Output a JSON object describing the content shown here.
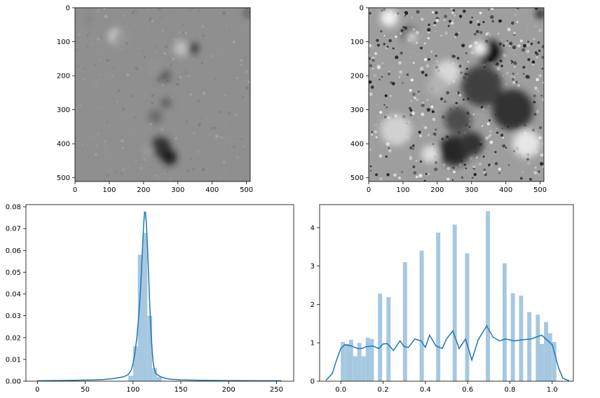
{
  "chart_data": [
    {
      "type": "heatmap",
      "subtype": "image",
      "colormap": "gray",
      "xlim": [
        0,
        511
      ],
      "ylim": [
        511,
        0
      ],
      "xticks": [
        "0",
        "100",
        "200",
        "300",
        "400",
        "500"
      ],
      "yticks": [
        "0",
        "100",
        "200",
        "300",
        "400",
        "500"
      ],
      "blobs": [
        {
          "x": 120,
          "y": 85,
          "r": 22,
          "v": 0.85
        },
        {
          "x": 130,
          "y": 90,
          "r": 20,
          "v": 0.6
        },
        {
          "x": 310,
          "y": 120,
          "r": 22,
          "v": 0.75
        },
        {
          "x": 345,
          "y": 120,
          "r": 16,
          "v": 0.25
        },
        {
          "x": 350,
          "y": 115,
          "r": 6,
          "v": 0.05
        },
        {
          "x": 260,
          "y": 200,
          "r": 20,
          "v": 0.38
        },
        {
          "x": 240,
          "y": 180,
          "r": 18,
          "v": 0.58
        },
        {
          "x": 265,
          "y": 280,
          "r": 14,
          "v": 0.35
        },
        {
          "x": 235,
          "y": 320,
          "r": 20,
          "v": 0.42
        },
        {
          "x": 250,
          "y": 410,
          "r": 30,
          "v": 0.2
        },
        {
          "x": 275,
          "y": 440,
          "r": 22,
          "v": 0.12
        },
        {
          "x": 215,
          "y": 420,
          "r": 16,
          "v": 0.62
        },
        {
          "x": 40,
          "y": 33,
          "r": 5,
          "v": 0.3
        },
        {
          "x": 505,
          "y": 15,
          "r": 8,
          "v": 0.1
        }
      ]
    },
    {
      "type": "heatmap",
      "subtype": "image",
      "colormap": "gray",
      "xlim": [
        0,
        511
      ],
      "ylim": [
        511,
        0
      ],
      "xticks": [
        "0",
        "100",
        "200",
        "300",
        "400",
        "500"
      ],
      "yticks": [
        "0",
        "100",
        "200",
        "300",
        "400",
        "500"
      ],
      "blobs": [
        {
          "x": 120,
          "y": 80,
          "r": 22,
          "v": 0.1
        },
        {
          "x": 125,
          "y": 85,
          "r": 14,
          "v": 0.9
        },
        {
          "x": 350,
          "y": 130,
          "r": 35,
          "v": 0.05
        },
        {
          "x": 325,
          "y": 120,
          "r": 20,
          "v": 0.95
        },
        {
          "x": 230,
          "y": 190,
          "r": 35,
          "v": 0.85
        },
        {
          "x": 330,
          "y": 230,
          "r": 60,
          "v": 0.25
        },
        {
          "x": 420,
          "y": 300,
          "r": 60,
          "v": 0.2
        },
        {
          "x": 200,
          "y": 230,
          "r": 30,
          "v": 0.7
        },
        {
          "x": 260,
          "y": 330,
          "r": 40,
          "v": 0.3
        },
        {
          "x": 250,
          "y": 420,
          "r": 45,
          "v": 0.15
        },
        {
          "x": 180,
          "y": 430,
          "r": 25,
          "v": 0.88
        },
        {
          "x": 300,
          "y": 400,
          "r": 35,
          "v": 0.2
        },
        {
          "x": 500,
          "y": 18,
          "r": 12,
          "v": 0.02
        },
        {
          "x": 60,
          "y": 30,
          "r": 25,
          "v": 0.95
        },
        {
          "x": 460,
          "y": 400,
          "r": 40,
          "v": 0.9
        },
        {
          "x": 80,
          "y": 360,
          "r": 45,
          "v": 0.82
        }
      ]
    },
    {
      "type": "bar",
      "subtype": "histogram-with-kde",
      "xlim": [
        -12,
        268
      ],
      "ylim": [
        0,
        0.081
      ],
      "xticks": [
        0,
        50,
        100,
        150,
        200,
        250
      ],
      "yticks": [
        0,
        0.01,
        0.02,
        0.03,
        0.04,
        0.05,
        0.06,
        0.07,
        0.08
      ],
      "ytick_labels": [
        "0.00",
        "0.01",
        "0.02",
        "0.03",
        "0.04",
        "0.05",
        "0.06",
        "0.07",
        "0.08"
      ],
      "bin_width": 5,
      "bins": [
        {
          "x0": 95,
          "density": 0.0025
        },
        {
          "x0": 100,
          "density": 0.016
        },
        {
          "x0": 105,
          "density": 0.058
        },
        {
          "x0": 110,
          "density": 0.068
        },
        {
          "x0": 115,
          "density": 0.03
        },
        {
          "x0": 120,
          "density": 0.006
        },
        {
          "x0": 125,
          "density": 0.002
        }
      ],
      "kde": {
        "x": [
          0,
          20,
          40,
          60,
          70,
          80,
          90,
          95,
          98,
          100,
          102,
          104,
          106,
          107,
          108,
          109,
          110,
          111,
          112,
          113,
          114,
          115,
          116,
          117,
          118,
          119,
          120,
          121,
          122,
          124,
          127,
          130,
          135,
          140,
          150,
          170,
          200,
          230,
          255
        ],
        "y": [
          0.0002,
          0.0003,
          0.0004,
          0.0006,
          0.0008,
          0.0012,
          0.002,
          0.003,
          0.005,
          0.008,
          0.013,
          0.02,
          0.03,
          0.036,
          0.043,
          0.052,
          0.062,
          0.071,
          0.0775,
          0.0775,
          0.072,
          0.063,
          0.052,
          0.04,
          0.03,
          0.021,
          0.014,
          0.009,
          0.006,
          0.0035,
          0.0025,
          0.0018,
          0.0012,
          0.0009,
          0.0006,
          0.0004,
          0.0003,
          0.0002,
          0.0002
        ]
      }
    },
    {
      "type": "bar",
      "subtype": "histogram-with-kde",
      "xlim": [
        -0.1,
        1.1
      ],
      "ylim": [
        0,
        4.6
      ],
      "xticks": [
        0.0,
        0.2,
        0.4,
        0.6,
        0.8,
        1.0
      ],
      "xtick_labels": [
        "0.0",
        "0.2",
        "0.4",
        "0.6",
        "0.8",
        "1.0"
      ],
      "yticks": [
        0,
        1,
        2,
        3,
        4
      ],
      "ytick_labels": [
        "0",
        "1",
        "2",
        "3",
        "4"
      ],
      "bin_width": 0.0196,
      "bins": [
        {
          "x0": 0.0,
          "density": 1.02
        },
        {
          "x0": 0.02,
          "density": 0.97
        },
        {
          "x0": 0.039,
          "density": 1.08
        },
        {
          "x0": 0.059,
          "density": 0.65
        },
        {
          "x0": 0.078,
          "density": 1.0
        },
        {
          "x0": 0.098,
          "density": 0.65
        },
        {
          "x0": 0.118,
          "density": 1.13
        },
        {
          "x0": 0.137,
          "density": 1.1
        },
        {
          "x0": 0.176,
          "density": 2.28
        },
        {
          "x0": 0.216,
          "density": 2.19
        },
        {
          "x0": 0.294,
          "density": 3.1
        },
        {
          "x0": 0.373,
          "density": 3.4
        },
        {
          "x0": 0.451,
          "density": 3.87
        },
        {
          "x0": 0.529,
          "density": 4.08
        },
        {
          "x0": 0.588,
          "density": 3.33
        },
        {
          "x0": 0.686,
          "density": 4.43
        },
        {
          "x0": 0.765,
          "density": 3.07
        },
        {
          "x0": 0.804,
          "density": 2.29
        },
        {
          "x0": 0.843,
          "density": 2.23
        },
        {
          "x0": 0.882,
          "density": 1.8
        },
        {
          "x0": 0.922,
          "density": 1.73
        },
        {
          "x0": 0.941,
          "density": 0.97
        },
        {
          "x0": 0.961,
          "density": 1.54
        },
        {
          "x0": 0.98,
          "density": 1.25
        },
        {
          "x0": 1.0,
          "density": 1.02
        }
      ],
      "kde": {
        "x": [
          -0.07,
          -0.04,
          -0.02,
          0.0,
          0.02,
          0.05,
          0.08,
          0.1,
          0.12,
          0.15,
          0.18,
          0.2,
          0.22,
          0.25,
          0.28,
          0.3,
          0.32,
          0.35,
          0.38,
          0.4,
          0.42,
          0.45,
          0.48,
          0.5,
          0.53,
          0.56,
          0.59,
          0.62,
          0.65,
          0.69,
          0.72,
          0.75,
          0.78,
          0.82,
          0.86,
          0.9,
          0.95,
          1.0,
          1.03,
          1.05,
          1.08
        ],
        "y": [
          0.02,
          0.2,
          0.55,
          0.85,
          0.95,
          0.92,
          0.85,
          0.85,
          0.9,
          0.92,
          0.85,
          0.97,
          0.98,
          0.8,
          1.05,
          0.9,
          0.88,
          1.1,
          1.05,
          0.88,
          1.2,
          0.92,
          0.85,
          1.1,
          1.31,
          0.85,
          1.1,
          0.55,
          1.08,
          1.44,
          1.15,
          1.05,
          1.1,
          1.05,
          1.08,
          1.1,
          1.2,
          0.95,
          0.35,
          0.08,
          0.01
        ]
      }
    }
  ]
}
